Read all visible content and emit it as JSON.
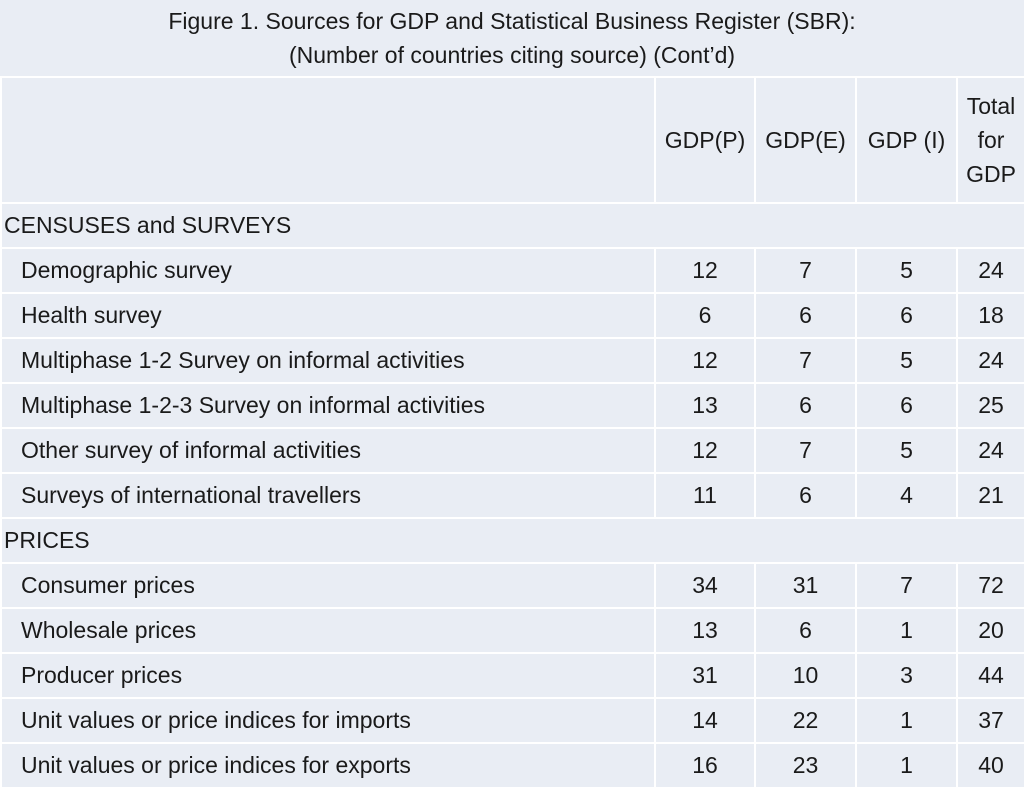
{
  "caption": {
    "line1": "Figure 1. Sources for GDP and Statistical Business Register (SBR):",
    "line2": "(Number of countries citing source) (Cont’d)"
  },
  "table": {
    "columns": {
      "label": "",
      "gdp_p": "GDP(P)",
      "gdp_e": "GDP(E)",
      "gdp_i": "GDP (I)",
      "total_line1": "Total",
      "total_line2": "for",
      "total_line3": "GDP"
    },
    "sections": [
      {
        "title": "CENSUSES and SURVEYS",
        "rows": [
          {
            "label": "Demographic survey",
            "gdp_p": "12",
            "gdp_e": "7",
            "gdp_i": "5",
            "total": "24"
          },
          {
            "label": "Health survey",
            "gdp_p": "6",
            "gdp_e": "6",
            "gdp_i": "6",
            "total": "18"
          },
          {
            "label": "Multiphase 1-2 Survey on informal activities",
            "gdp_p": "12",
            "gdp_e": "7",
            "gdp_i": "5",
            "total": "24"
          },
          {
            "label": "Multiphase 1-2-3 Survey on informal activities",
            "gdp_p": "13",
            "gdp_e": "6",
            "gdp_i": "6",
            "total": "25"
          },
          {
            "label": "Other survey of informal activities",
            "gdp_p": "12",
            "gdp_e": "7",
            "gdp_i": "5",
            "total": "24"
          },
          {
            "label": "Surveys of international travellers",
            "gdp_p": "11",
            "gdp_e": "6",
            "gdp_i": "4",
            "total": "21"
          }
        ]
      },
      {
        "title": "PRICES",
        "rows": [
          {
            "label": "Consumer prices",
            "gdp_p": "34",
            "gdp_e": "31",
            "gdp_i": "7",
            "total": "72"
          },
          {
            "label": "Wholesale prices",
            "gdp_p": "13",
            "gdp_e": "6",
            "gdp_i": "1",
            "total": "20"
          },
          {
            "label": "Producer prices",
            "gdp_p": "31",
            "gdp_e": "10",
            "gdp_i": "3",
            "total": "44"
          },
          {
            "label": "Unit values or price indices for imports",
            "gdp_p": "14",
            "gdp_e": "22",
            "gdp_i": "1",
            "total": "37"
          },
          {
            "label": "Unit values or price indices for exports",
            "gdp_p": "16",
            "gdp_e": "23",
            "gdp_i": "1",
            "total": "40"
          }
        ]
      }
    ]
  }
}
